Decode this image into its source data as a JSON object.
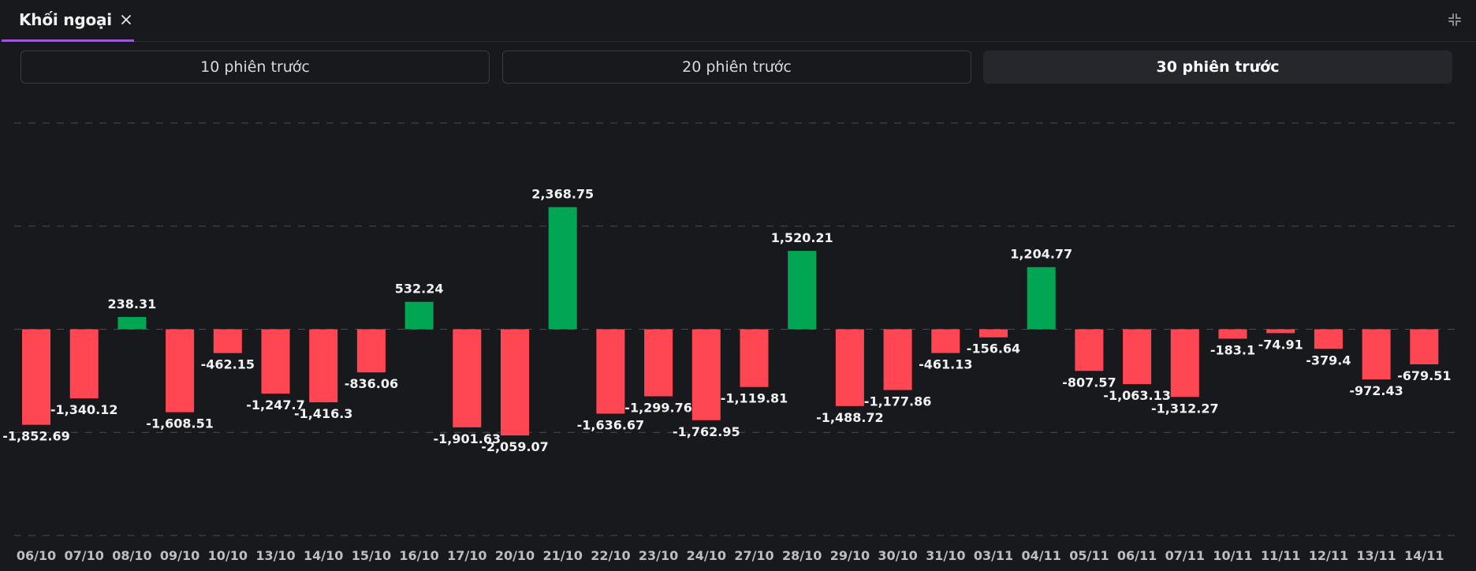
{
  "tab": {
    "label": "Khối ngoại"
  },
  "icons": {
    "close": "close-icon",
    "collapse": "collapse-icon"
  },
  "ranges": [
    {
      "label": "10 phiên trước",
      "active": false
    },
    {
      "label": "20 phiên trước",
      "active": false
    },
    {
      "label": "30 phiên trước",
      "active": true
    }
  ],
  "colors": {
    "positive": "#00a651",
    "negative": "#ff4652",
    "grid": "#4a4b52",
    "accent": "#9b59d8"
  },
  "chart_data": {
    "type": "bar",
    "categories": [
      "06/10",
      "07/10",
      "08/10",
      "09/10",
      "10/10",
      "13/10",
      "14/10",
      "15/10",
      "16/10",
      "17/10",
      "20/10",
      "21/10",
      "22/10",
      "23/10",
      "24/10",
      "27/10",
      "28/10",
      "29/10",
      "30/10",
      "31/10",
      "03/11",
      "04/11",
      "05/11",
      "06/11",
      "07/11",
      "10/11",
      "11/11",
      "12/11",
      "13/11",
      "14/11"
    ],
    "values": [
      -1852.69,
      -1340.12,
      238.31,
      -1608.51,
      -462.15,
      -1247.7,
      -1416.3,
      -836.06,
      532.24,
      -1901.63,
      -2059.07,
      2368.75,
      -1636.67,
      -1299.76,
      -1762.95,
      -1119.81,
      1520.21,
      -1488.72,
      -1177.86,
      -461.13,
      -156.64,
      1204.77,
      -807.57,
      -1063.13,
      -1312.27,
      -183.1,
      -74.91,
      -379.4,
      -972.43,
      -679.51
    ],
    "value_labels": [
      "-1,852.69",
      "-1,340.12",
      "238.31",
      "-1,608.51",
      "-462.15",
      "-1,247.7",
      "-1,416.3",
      "-836.06",
      "532.24",
      "-1,901.63",
      "-2,059.07",
      "2,368.75",
      "-1,636.67",
      "-1,299.76",
      "-1,762.95",
      "-1,119.81",
      "1,520.21",
      "-1,488.72",
      "-1,177.86",
      "-461.13",
      "-156.64",
      "1,204.77",
      "-807.57",
      "-1,063.13",
      "-1,312.27",
      "-183.1",
      "-74.91",
      "-379.4",
      "-972.43",
      "-679.51"
    ],
    "ylim": [
      -4000,
      4000
    ],
    "gridlines": [
      -4000,
      -2000,
      0,
      2000,
      4000
    ],
    "grid": true,
    "grid_style": "dashed",
    "legend": "none"
  }
}
